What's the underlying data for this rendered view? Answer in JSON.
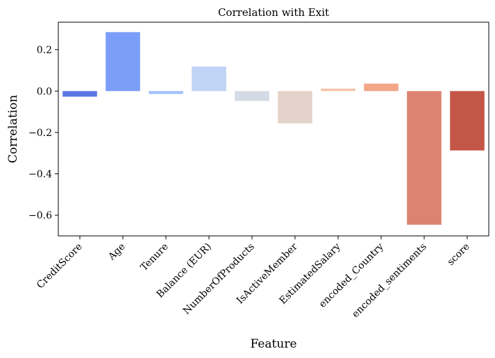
{
  "chart_data": {
    "type": "bar",
    "title": "Correlation with Exit",
    "xlabel": "Feature",
    "ylabel": "Correlation",
    "ylim": [
      -0.7,
      0.333
    ],
    "yticks": [
      0.2,
      0.0,
      -0.2,
      -0.4,
      -0.6
    ],
    "ytick_labels": [
      "0.2",
      "0.0",
      "−0.2",
      "−0.4",
      "−0.6"
    ],
    "grid": false,
    "legend": "none",
    "categories": [
      "CreditScore",
      "Age",
      "Tenure",
      "Balance (EUR)",
      "NumberOfProducts",
      "IsActiveMember",
      "EstimatedSalary",
      "encoded_Country",
      "encoded_sentiments",
      "score"
    ],
    "values": [
      -0.027,
      0.285,
      -0.014,
      0.119,
      -0.048,
      -0.156,
      0.012,
      0.036,
      -0.646,
      -0.287
    ],
    "colors": [
      "#5a78e4",
      "#7b9ff9",
      "#a1c0ff",
      "#c0d4f5",
      "#d5dbe5",
      "#e4d3ca",
      "#f5c4ac",
      "#f2a688",
      "#dd8470",
      "#c45648"
    ]
  }
}
